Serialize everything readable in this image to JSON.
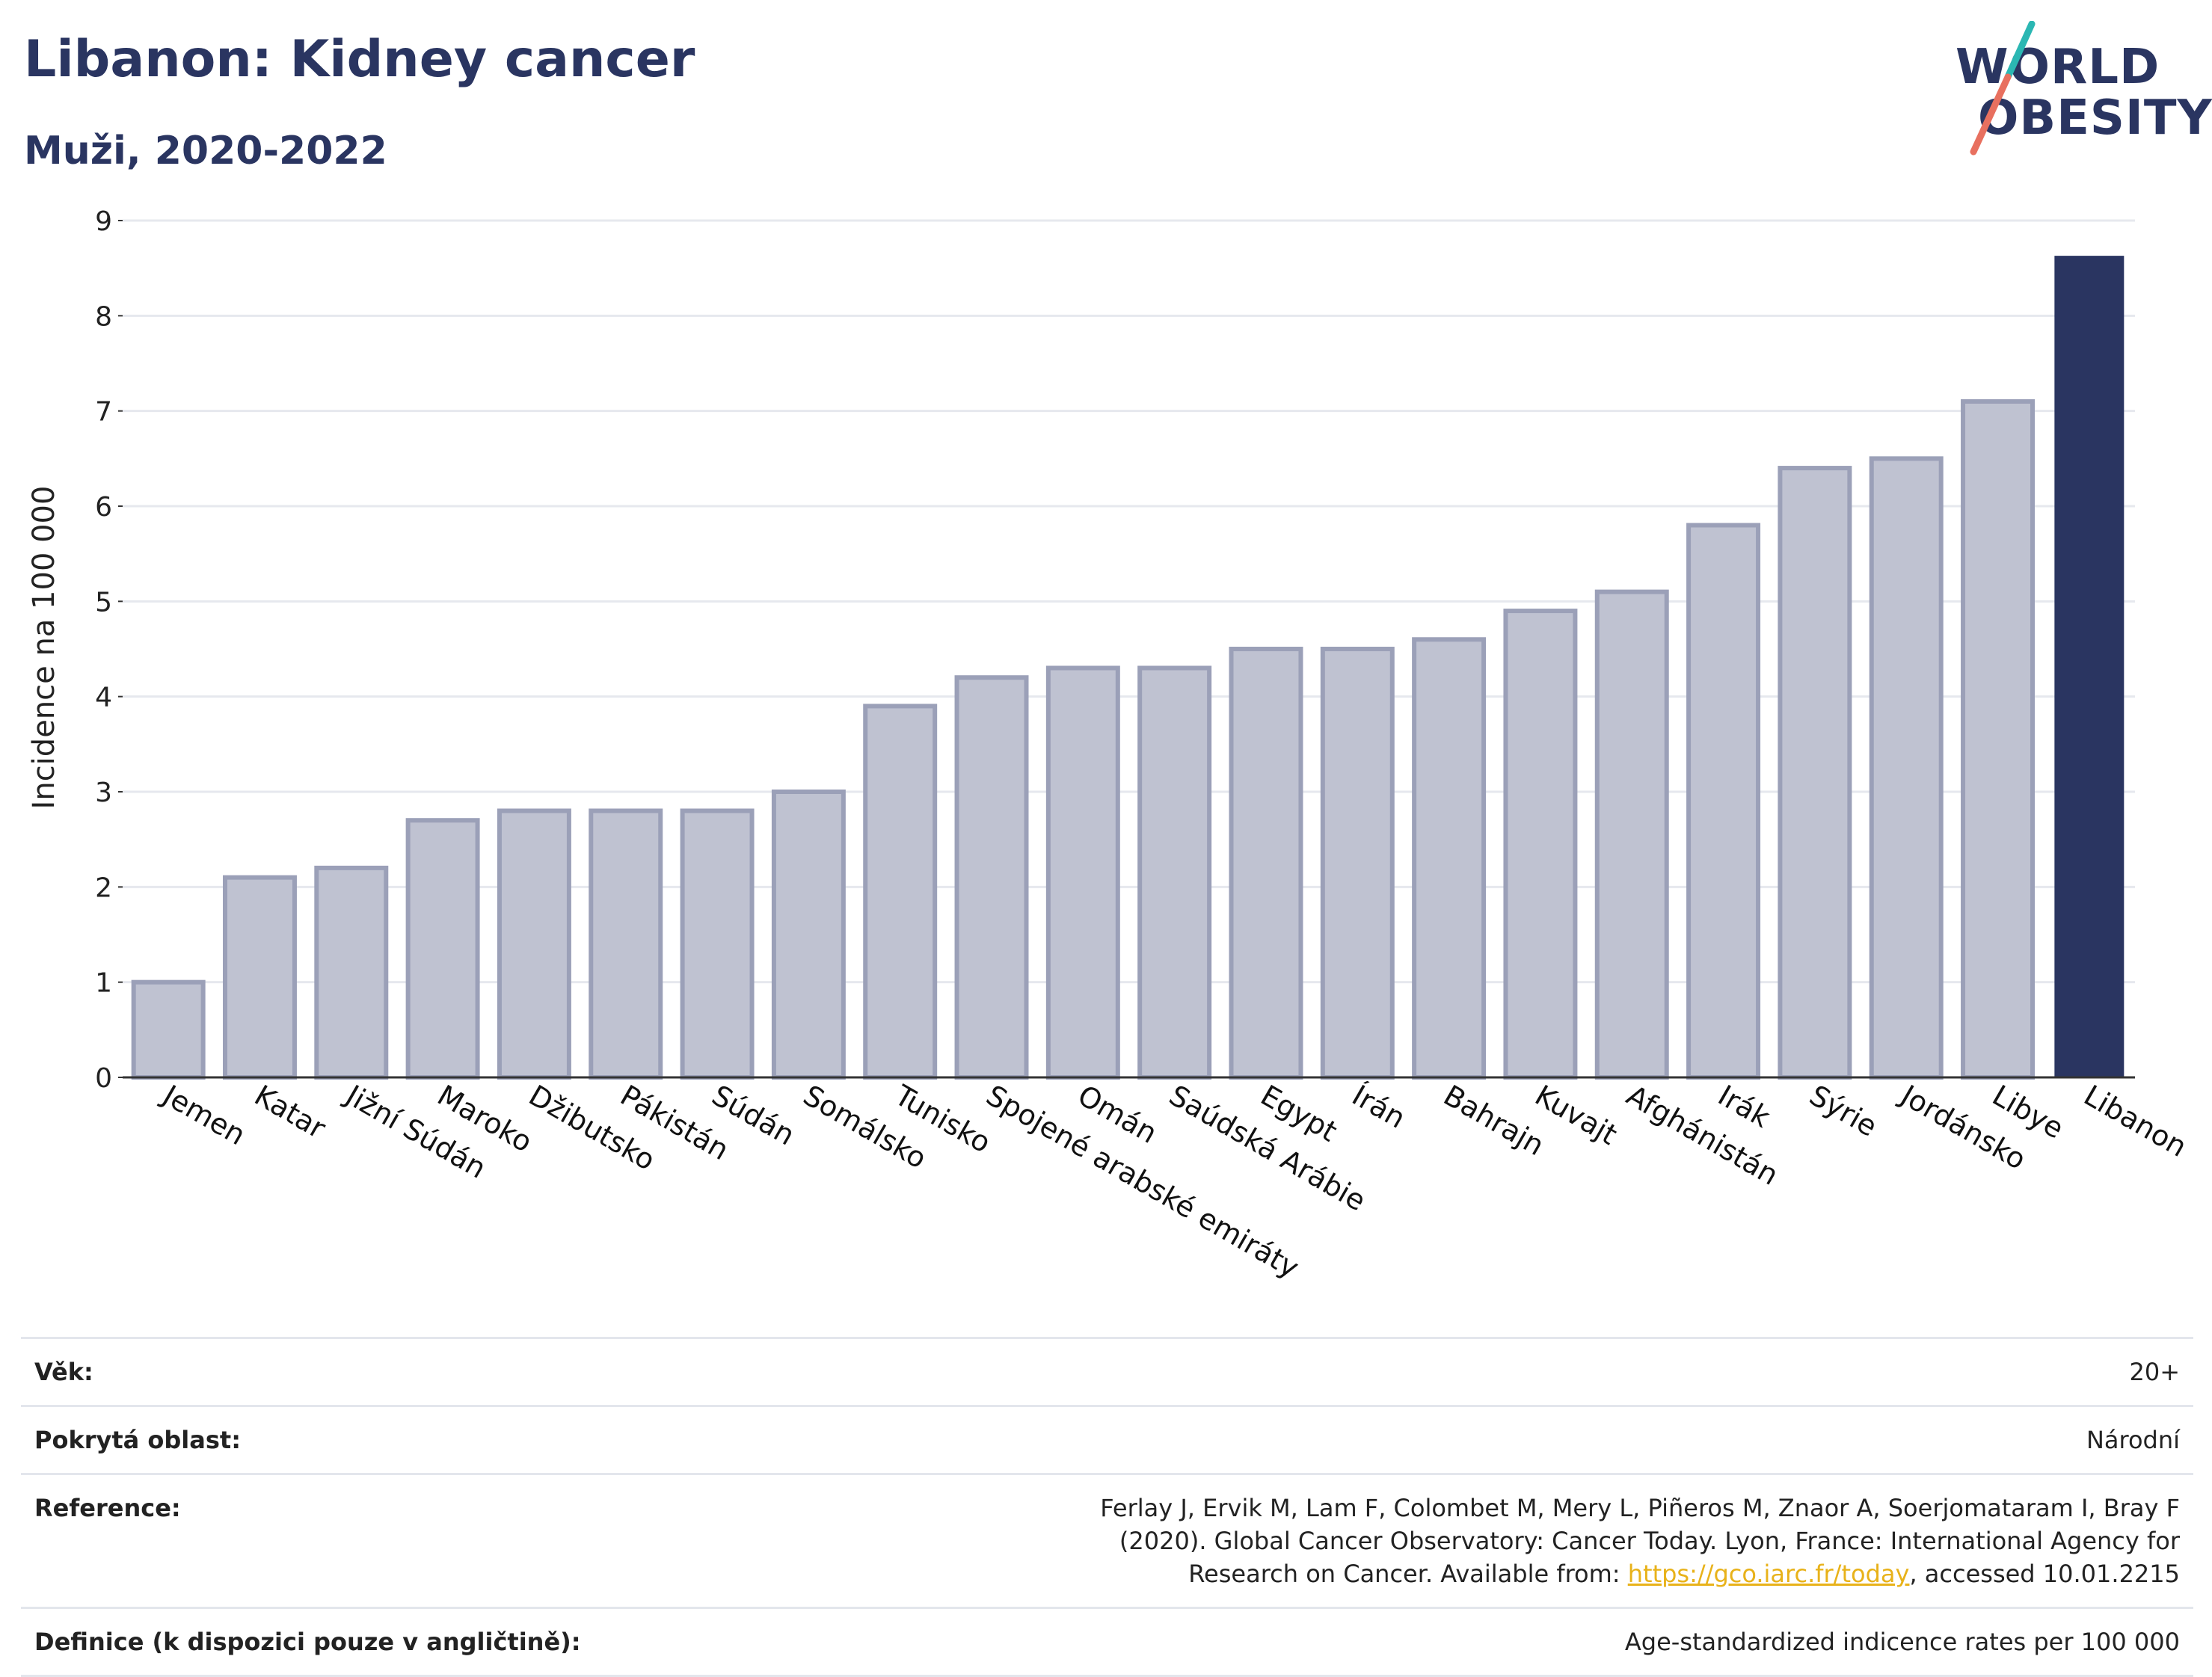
{
  "header": {
    "title": "Libanon: Kidney cancer",
    "subtitle": "Muži, 2020-2022"
  },
  "logo": {
    "line1": "WORLD",
    "line2": "OBESITY",
    "text_color": "#2a3561",
    "slash_color_top": "#2bb7b3",
    "slash_color_bottom": "#e8705f"
  },
  "chart_data": {
    "type": "bar",
    "categories": [
      "Jemen",
      "Katar",
      "Jižní Súdán",
      "Maroko",
      "Džibutsko",
      "Pákistán",
      "Súdán",
      "Somálsko",
      "Tunisko",
      "Spojené arabské emiráty",
      "Omán",
      "Saúdská Arábie",
      "Egypt",
      "Írán",
      "Bahrajn",
      "Kuvajt",
      "Afghánistán",
      "Irák",
      "Sýrie",
      "Jordánsko",
      "Libye",
      "Libanon"
    ],
    "values": [
      1.0,
      2.1,
      2.2,
      2.7,
      2.8,
      2.8,
      2.8,
      3.0,
      3.9,
      4.2,
      4.3,
      4.3,
      4.5,
      4.5,
      4.6,
      4.9,
      5.1,
      5.8,
      6.4,
      6.5,
      7.1,
      8.63
    ],
    "highlight": "Libanon",
    "ylabel": "Incidence na 100 000",
    "xlabel": "",
    "ylim": [
      0,
      9
    ],
    "yticks": [
      0,
      1,
      2,
      3,
      4,
      5,
      6,
      7,
      8,
      9
    ],
    "grid": true,
    "colors": {
      "bar": "#bfc2d1",
      "bar_border": "#9ba0b8",
      "highlight": "#2a3561",
      "grid": "#e6e8ee",
      "axis": "#333333"
    }
  },
  "meta": [
    {
      "label": "Věk:",
      "value": "20+"
    },
    {
      "label": "Pokrytá oblast:",
      "value": "Národní"
    },
    {
      "label": "Reference:",
      "value_before": "Ferlay J, Ervik M, Lam F, Colombet M, Mery L, Piñeros M, Znaor A, Soerjomataram I, Bray F (2020). Global Cancer Observatory: Cancer Today. Lyon, France: International Agency for Research on Cancer. Available from: ",
      "link": "https://gco.iarc.fr/today",
      "value_after": ", accessed 10.01.2215"
    },
    {
      "label": "Definice (k dispozici pouze v angličtině):",
      "value": "Age-standardized indicence rates per 100 000"
    }
  ]
}
